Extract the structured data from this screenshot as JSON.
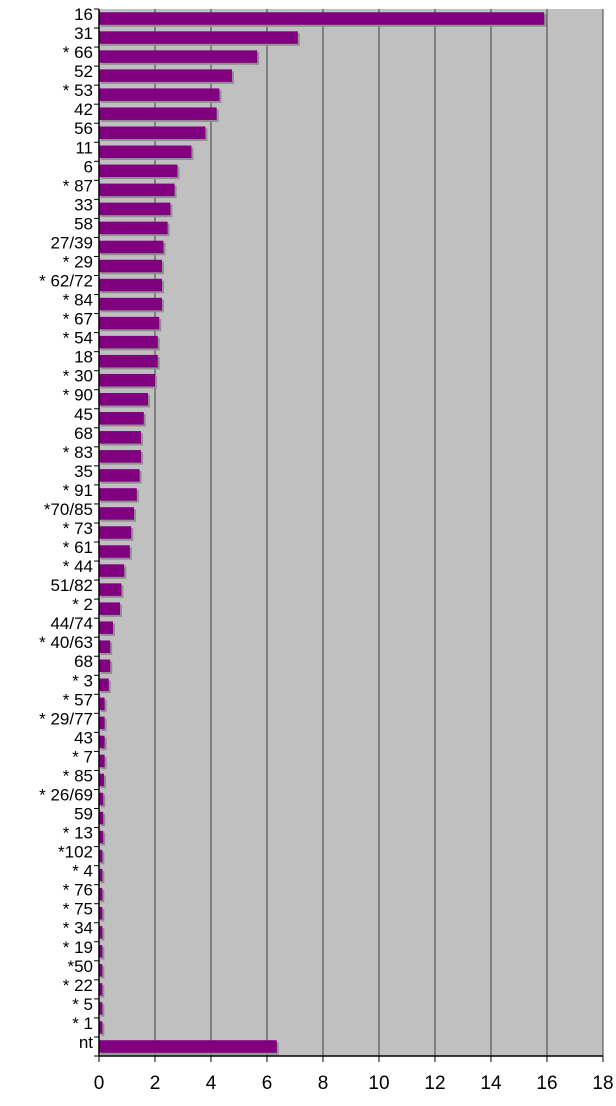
{
  "chart_data": {
    "type": "bar",
    "orientation": "horizontal",
    "title": "",
    "xlabel": "",
    "ylabel": "",
    "xlim": [
      0,
      18
    ],
    "x_ticks": [
      0,
      2,
      4,
      6,
      8,
      10,
      12,
      14,
      16,
      18
    ],
    "grid": "vertical",
    "legend": "none",
    "categories": [
      "16",
      "31",
      "* 66",
      "52",
      "* 53",
      "42",
      "56",
      "11",
      "6",
      "* 87",
      "33",
      "58",
      "27/39",
      "* 29",
      "* 62/72",
      "* 84",
      "* 67",
      "* 54",
      "18",
      "* 30",
      "* 90",
      "45",
      "68",
      "* 83",
      "35",
      "* 91",
      "*70/85",
      "* 73",
      "* 61",
      "* 44",
      "51/82",
      "* 2",
      "44/74",
      "* 40/63",
      "68",
      "* 3",
      "* 57",
      "* 29/77",
      "43",
      "* 7",
      "* 85",
      "* 26/69",
      "59",
      "* 13",
      "*102",
      "* 4",
      "* 76",
      "* 75",
      "* 34",
      "* 19",
      "*50",
      "* 22",
      "* 5",
      "* 1",
      "nt"
    ],
    "values": [
      15.9,
      7.1,
      5.65,
      4.75,
      4.3,
      4.2,
      3.8,
      3.3,
      2.8,
      2.7,
      2.55,
      2.45,
      2.3,
      2.25,
      2.25,
      2.25,
      2.15,
      2.1,
      2.1,
      2.0,
      1.75,
      1.6,
      1.5,
      1.5,
      1.45,
      1.35,
      1.25,
      1.15,
      1.1,
      0.9,
      0.8,
      0.75,
      0.5,
      0.4,
      0.4,
      0.35,
      0.2,
      0.2,
      0.2,
      0.2,
      0.18,
      0.15,
      0.15,
      0.15,
      0.12,
      0.12,
      0.12,
      0.12,
      0.12,
      0.12,
      0.12,
      0.12,
      0.12,
      0.12,
      6.35
    ],
    "colors": {
      "bar": "#800080",
      "bar_shadow": "#909090",
      "plot_background": "#c0c0c0",
      "gridline": "#404040",
      "axis": "#000000"
    }
  }
}
